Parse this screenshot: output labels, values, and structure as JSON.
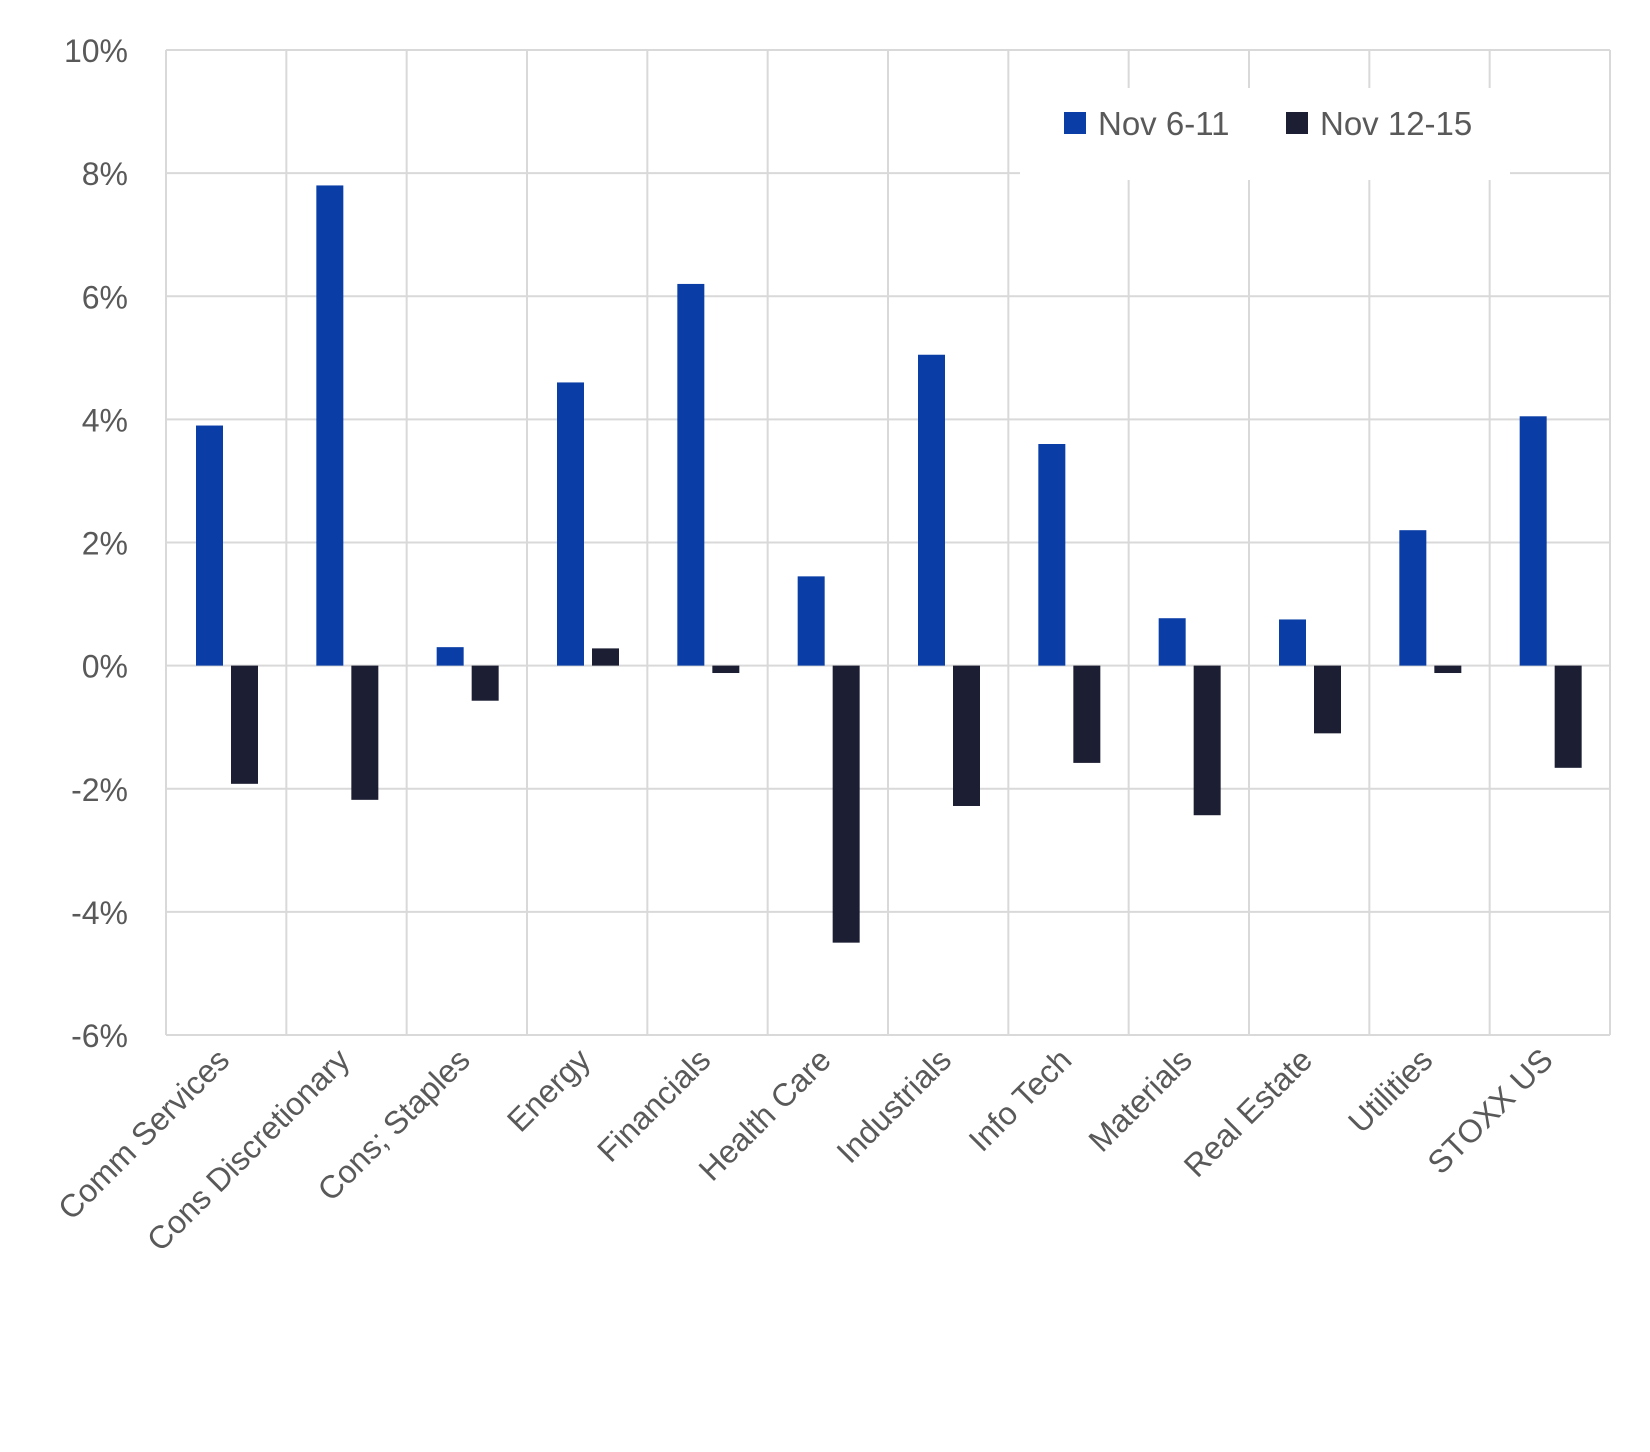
{
  "chart_data": {
    "type": "bar",
    "title": "",
    "xlabel": "",
    "ylabel": "",
    "categories": [
      "Comm Services",
      "Cons Discretionary",
      "Cons; Staples",
      "Energy",
      "Financials",
      "Health Care",
      "Industrials",
      "Info Tech",
      "Materials",
      "Real Estate",
      "Utilities",
      "STOXX US"
    ],
    "series": [
      {
        "name": "Nov 6-11",
        "color": "#0a3ea6",
        "values": [
          3.9,
          7.8,
          0.3,
          4.6,
          6.2,
          1.45,
          5.05,
          3.6,
          0.77,
          0.75,
          2.2,
          4.05
        ]
      },
      {
        "name": "Nov 12-15",
        "color": "#1c1f33",
        "values": [
          -1.92,
          -2.18,
          -0.57,
          0.28,
          -0.12,
          -4.5,
          -2.28,
          -1.58,
          -2.43,
          -1.1,
          -0.12,
          -1.66
        ]
      }
    ],
    "ylim": [
      -6,
      10
    ],
    "y_ticks": [
      10,
      8,
      6,
      4,
      2,
      0,
      -2,
      -4,
      -6
    ],
    "y_tick_labels": [
      "10%",
      "8%",
      "6%",
      "4%",
      "2%",
      "0%",
      "-2%",
      "-4%",
      "-6%"
    ],
    "grid": true,
    "legend": {
      "placement": "top-right",
      "entries": [
        "Nov 6-11",
        "Nov 12-15"
      ]
    },
    "gridline_color": "#d9d9d9",
    "tick_label_color": "#595959"
  }
}
